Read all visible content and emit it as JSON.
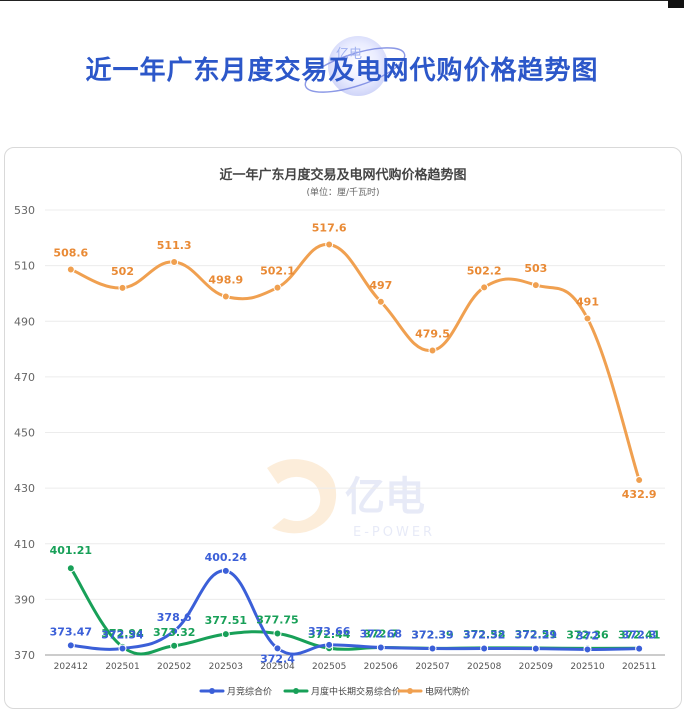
{
  "banner": {
    "title": "近一年广东月度交易及电网代购价格趋势图",
    "logo_text": "亿电"
  },
  "watermark": {
    "main": "亿电",
    "sub": "E-POWER"
  },
  "colors": {
    "blue": "#3b5fd8",
    "green": "#18a058",
    "orange": "#f0a050",
    "orange_label": "#e98a35",
    "title_blue": "#2c57c9"
  },
  "chart_data": {
    "type": "line",
    "title": "近一年广东月度交易及电网代购价格趋势图",
    "subtitle": "(单位：厘/千瓦时)",
    "categories": [
      "202412",
      "202501",
      "202502",
      "202503",
      "202504",
      "202505",
      "202506",
      "202507",
      "202508",
      "202509",
      "202510",
      "202511"
    ],
    "ylim": [
      370,
      530
    ],
    "yticks": [
      370,
      390,
      410,
      430,
      450,
      470,
      490,
      510,
      530
    ],
    "grid": true,
    "legend_position": "bottom",
    "series": [
      {
        "name": "月竞综合价",
        "color": "#3b5fd8",
        "values": [
          373.47,
          372.34,
          378.6,
          400.24,
          372.4,
          373.66,
          372.68,
          372.33,
          372.32,
          372.29,
          372,
          372.3
        ],
        "labels": [
          "373.47",
          "372.34",
          "378.6",
          "400.24",
          "372.4",
          "373.66",
          "372.68",
          "372.33",
          "372.32",
          "372.29",
          "372",
          "372.3"
        ]
      },
      {
        "name": "月度中长期交易综合价",
        "color": "#18a058",
        "values": [
          401.21,
          372.94,
          373.32,
          377.51,
          377.75,
          372.44,
          372.7,
          372.39,
          372.58,
          372.51,
          372.36,
          372.41
        ],
        "labels": [
          "401.21",
          "372.94",
          "373.32",
          "377.51",
          "377.75",
          "372.44",
          "372.7",
          "372.39",
          "372.58",
          "372.51",
          "372.36",
          "372.41"
        ]
      },
      {
        "name": "电网代购价",
        "color": "#f0a050",
        "values": [
          508.6,
          502,
          511.3,
          498.9,
          502.1,
          517.6,
          497,
          479.5,
          502.2,
          503,
          491,
          432.9
        ],
        "labels": [
          "508.6",
          "502",
          "511.3",
          "498.9",
          "502.1",
          "517.6",
          "497",
          "479.5",
          "502.2",
          "503",
          "491",
          "432.9"
        ]
      }
    ]
  }
}
